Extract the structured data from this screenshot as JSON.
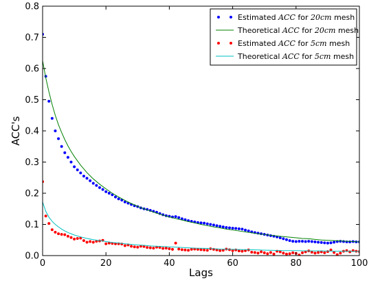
{
  "chart_data": {
    "type": "line",
    "title": "",
    "xlabel": "Lags",
    "ylabel": "ACC's",
    "xlim": [
      0,
      100
    ],
    "ylim": [
      0,
      0.8
    ],
    "x_ticks": [
      0,
      20,
      40,
      60,
      80,
      100
    ],
    "y_ticks": [
      0.0,
      0.1,
      0.2,
      0.3,
      0.4,
      0.5,
      0.6,
      0.7,
      0.8
    ],
    "x_tick_labels": [
      "0",
      "20",
      "40",
      "60",
      "80",
      "100"
    ],
    "y_tick_labels": [
      "0.0",
      "0.1",
      "0.2",
      "0.3",
      "0.4",
      "0.5",
      "0.6",
      "0.7",
      "0.8"
    ],
    "grid": false,
    "legend_position": "top-right",
    "series": [
      {
        "name_prefix": "Estimated ",
        "name_math": "ACC",
        "name_mid": " for ",
        "name_math2": "20cm",
        "name_suffix": " mesh",
        "style": "points",
        "color": "#0000ff",
        "x": [
          0,
          1,
          2,
          3,
          4,
          5,
          6,
          7,
          8,
          9,
          10,
          11,
          12,
          13,
          14,
          15,
          16,
          17,
          18,
          19,
          20,
          21,
          22,
          23,
          24,
          25,
          26,
          27,
          28,
          29,
          30,
          31,
          32,
          33,
          34,
          35,
          36,
          37,
          38,
          39,
          40,
          41,
          42,
          43,
          44,
          45,
          46,
          47,
          48,
          49,
          50,
          51,
          52,
          53,
          54,
          55,
          56,
          57,
          58,
          59,
          60,
          61,
          62,
          63,
          64,
          65,
          66,
          67,
          68,
          69,
          70,
          71,
          72,
          73,
          74,
          75,
          76,
          77,
          78,
          79,
          80,
          81,
          82,
          83,
          84,
          85,
          86,
          87,
          88,
          89,
          90,
          91,
          92,
          93,
          94,
          95,
          96,
          97,
          98,
          99,
          100
        ],
        "y": [
          0.71,
          0.575,
          0.495,
          0.44,
          0.4,
          0.375,
          0.35,
          0.33,
          0.315,
          0.3,
          0.285,
          0.275,
          0.265,
          0.255,
          0.248,
          0.24,
          0.232,
          0.225,
          0.218,
          0.212,
          0.205,
          0.2,
          0.195,
          0.188,
          0.182,
          0.178,
          0.172,
          0.168,
          0.164,
          0.16,
          0.157,
          0.153,
          0.15,
          0.148,
          0.145,
          0.142,
          0.139,
          0.135,
          0.131,
          0.128,
          0.126,
          0.124,
          0.125,
          0.122,
          0.118,
          0.115,
          0.112,
          0.11,
          0.108,
          0.106,
          0.105,
          0.104,
          0.102,
          0.1,
          0.098,
          0.096,
          0.094,
          0.092,
          0.09,
          0.089,
          0.088,
          0.087,
          0.086,
          0.085,
          0.082,
          0.079,
          0.076,
          0.074,
          0.072,
          0.07,
          0.068,
          0.066,
          0.064,
          0.062,
          0.06,
          0.057,
          0.054,
          0.051,
          0.048,
          0.046,
          0.045,
          0.046,
          0.046,
          0.045,
          0.046,
          0.045,
          0.044,
          0.043,
          0.042,
          0.041,
          0.04,
          0.041,
          0.043,
          0.045,
          0.046,
          0.045,
          0.044,
          0.044,
          0.045,
          0.044,
          0.044
        ]
      },
      {
        "name_prefix": "Theoretical ",
        "name_math": "ACC",
        "name_mid": " for ",
        "name_math2": "20cm",
        "name_suffix": " mesh",
        "style": "line",
        "color": "#008000",
        "x": [
          0,
          1,
          2,
          3,
          4,
          5,
          6,
          7,
          8,
          9,
          10,
          12,
          14,
          16,
          18,
          20,
          22,
          24,
          26,
          28,
          30,
          32,
          34,
          36,
          38,
          40,
          42,
          44,
          46,
          48,
          50,
          52,
          54,
          56,
          58,
          60,
          62,
          64,
          66,
          68,
          70,
          72,
          74,
          76,
          78,
          80,
          82,
          84,
          86,
          88,
          90,
          92,
          94,
          96,
          98,
          100
        ],
        "y": [
          0.625,
          0.57,
          0.525,
          0.485,
          0.45,
          0.42,
          0.395,
          0.372,
          0.352,
          0.334,
          0.318,
          0.29,
          0.266,
          0.246,
          0.229,
          0.214,
          0.2,
          0.188,
          0.177,
          0.167,
          0.158,
          0.15,
          0.143,
          0.136,
          0.13,
          0.124,
          0.119,
          0.114,
          0.109,
          0.105,
          0.1,
          0.096,
          0.092,
          0.089,
          0.085,
          0.082,
          0.079,
          0.076,
          0.073,
          0.07,
          0.068,
          0.065,
          0.063,
          0.061,
          0.059,
          0.057,
          0.055,
          0.054,
          0.052,
          0.05,
          0.049,
          0.048,
          0.047,
          0.046,
          0.045,
          0.044
        ]
      },
      {
        "name_prefix": "Estimated ",
        "name_math": "ACC",
        "name_mid": " for ",
        "name_math2": "5cm",
        "name_suffix": " mesh",
        "style": "points",
        "color": "#ff0000",
        "x": [
          0,
          1,
          2,
          3,
          4,
          5,
          6,
          7,
          8,
          9,
          10,
          11,
          12,
          13,
          14,
          15,
          16,
          17,
          18,
          19,
          20,
          21,
          22,
          23,
          24,
          25,
          26,
          27,
          28,
          29,
          30,
          31,
          32,
          33,
          34,
          35,
          36,
          37,
          38,
          39,
          40,
          41,
          42,
          43,
          44,
          45,
          46,
          47,
          48,
          49,
          50,
          51,
          52,
          53,
          54,
          55,
          56,
          57,
          58,
          59,
          60,
          61,
          62,
          63,
          64,
          65,
          66,
          67,
          68,
          69,
          70,
          71,
          72,
          73,
          74,
          75,
          76,
          77,
          78,
          79,
          80,
          81,
          82,
          83,
          84,
          85,
          86,
          87,
          88,
          89,
          90,
          91,
          92,
          93,
          94,
          95,
          96,
          97,
          98,
          99,
          100
        ],
        "y": [
          0.237,
          0.127,
          0.103,
          0.083,
          0.075,
          0.07,
          0.068,
          0.067,
          0.062,
          0.058,
          0.053,
          0.055,
          0.056,
          0.048,
          0.043,
          0.045,
          0.043,
          0.046,
          0.047,
          0.049,
          0.038,
          0.04,
          0.039,
          0.038,
          0.038,
          0.037,
          0.032,
          0.034,
          0.03,
          0.028,
          0.027,
          0.03,
          0.029,
          0.026,
          0.025,
          0.024,
          0.027,
          0.026,
          0.023,
          0.024,
          0.022,
          0.02,
          0.04,
          0.021,
          0.019,
          0.018,
          0.017,
          0.02,
          0.021,
          0.02,
          0.019,
          0.018,
          0.017,
          0.022,
          0.02,
          0.018,
          0.016,
          0.017,
          0.021,
          0.019,
          0.016,
          0.018,
          0.015,
          0.014,
          0.016,
          0.018,
          0.011,
          0.01,
          0.008,
          0.012,
          0.009,
          0.006,
          0.01,
          0.005,
          0.014,
          0.012,
          0.008,
          0.005,
          0.006,
          0.009,
          0.007,
          0.002,
          0.009,
          0.012,
          0.015,
          0.011,
          0.008,
          0.01,
          0.012,
          0.009,
          0.013,
          0.018,
          0.01,
          0.003,
          0.008,
          0.014,
          0.016,
          0.012,
          0.016,
          0.014,
          0.013
        ]
      },
      {
        "name_prefix": "Theoretical ",
        "name_math": "ACC",
        "name_mid": " for ",
        "name_math2": "5cm",
        "name_suffix": " mesh",
        "style": "line",
        "color": "#00bfbf",
        "x": [
          0,
          1,
          2,
          3,
          4,
          5,
          6,
          7,
          8,
          9,
          10,
          12,
          14,
          16,
          18,
          20,
          22,
          24,
          26,
          28,
          30,
          32,
          34,
          36,
          38,
          40,
          44,
          48,
          52,
          56,
          60,
          64,
          68,
          72,
          76,
          80,
          84,
          88,
          92,
          96,
          100
        ],
        "y": [
          0.172,
          0.142,
          0.123,
          0.11,
          0.1,
          0.092,
          0.085,
          0.079,
          0.074,
          0.07,
          0.066,
          0.06,
          0.055,
          0.051,
          0.048,
          0.045,
          0.042,
          0.04,
          0.038,
          0.036,
          0.034,
          0.033,
          0.031,
          0.03,
          0.029,
          0.028,
          0.026,
          0.024,
          0.023,
          0.021,
          0.02,
          0.019,
          0.018,
          0.017,
          0.016,
          0.016,
          0.015,
          0.015,
          0.014,
          0.014,
          0.013
        ]
      }
    ]
  }
}
